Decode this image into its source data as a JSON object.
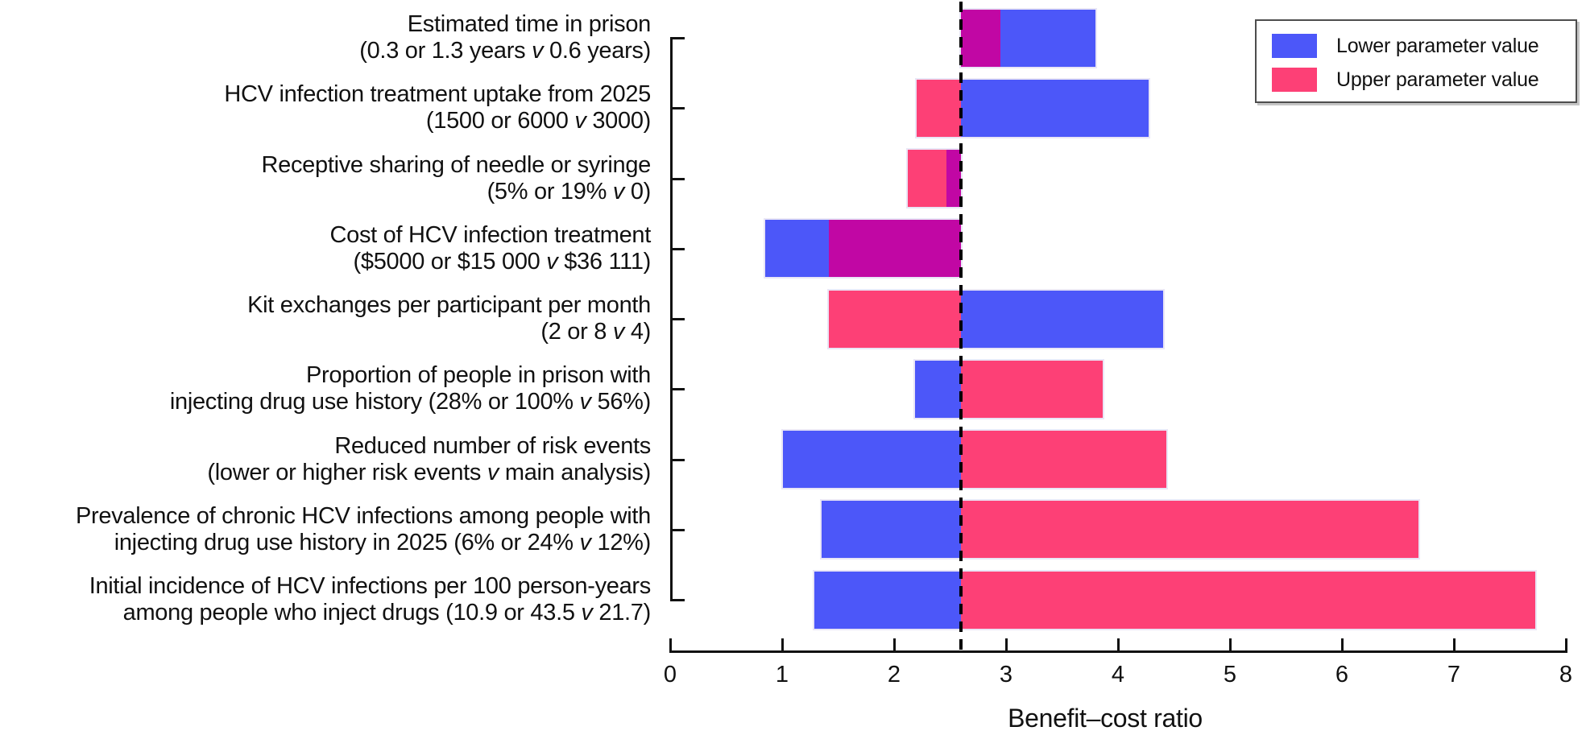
{
  "chart_data": {
    "type": "bar",
    "subtype": "tornado-sensitivity",
    "orientation": "horizontal",
    "title": "",
    "xlabel": "Benefit–cost ratio",
    "x_axis": {
      "min": 0,
      "max": 8,
      "ticks": [
        0,
        1,
        2,
        3,
        4,
        5,
        6,
        7,
        8
      ],
      "grid": false
    },
    "baseline": {
      "value": 2.6,
      "style": "dashed-vertical-line"
    },
    "legend": {
      "position": "top-right",
      "items": [
        {
          "name": "Lower parameter value",
          "color": "#4c57f9"
        },
        {
          "name": "Upper parameter value",
          "color": "#fd4076"
        }
      ]
    },
    "overlap_color": "#c107a4",
    "categories": [
      {
        "label": [
          "Estimated time in prison",
          "(0.3 or 1.3 years v 0.6 years)"
        ],
        "lower": 3.8,
        "upper": 2.95
      },
      {
        "label": [
          "HCV infection treatment uptake from 2025",
          "(1500 or 6000 v 3000)"
        ],
        "lower": 4.27,
        "upper": 2.2
      },
      {
        "label": [
          "Receptive sharing of needle or syringe",
          "(5% or 19% v 0)"
        ],
        "lower": 2.47,
        "upper": 2.12
      },
      {
        "label": [
          "Cost of HCV infection treatment",
          "($5000 or $15 000 v $36 111)"
        ],
        "lower": 0.85,
        "upper": 1.42
      },
      {
        "label": [
          "Kit exchanges per participant per month",
          "(2 or 8 v 4)"
        ],
        "lower": 4.4,
        "upper": 1.42
      },
      {
        "label": [
          "Proportion of people in prison with",
          "injecting drug use history (28% or 100% v 56%)"
        ],
        "lower": 2.19,
        "upper": 3.86
      },
      {
        "label": [
          "Reduced number of risk events",
          "(lower or higher risk events v main analysis)"
        ],
        "lower": 1.01,
        "upper": 4.43
      },
      {
        "label": [
          "Prevalence of chronic HCV infections among people with",
          "injecting drug use history in 2025 (6% or 24% v 12%)"
        ],
        "lower": 1.35,
        "upper": 6.68
      },
      {
        "label": [
          "Initial incidence of HCV infections per 100 person-years",
          "among people who inject drugs (10.9 or 43.5 v 21.7)"
        ],
        "lower": 1.29,
        "upper": 7.73
      }
    ]
  }
}
